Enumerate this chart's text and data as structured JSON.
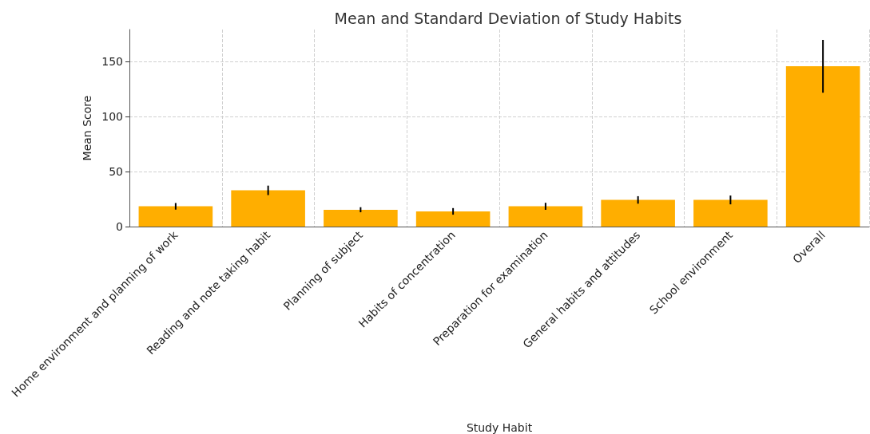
{
  "chart_data": {
    "type": "bar",
    "title": "Mean and Standard Deviation of Study Habits",
    "xlabel": "Study Habit",
    "ylabel": "Mean Score",
    "categories": [
      "Home environment and planning of work",
      "Reading and note taking habit",
      "Planning of subject",
      "Habits of concentration",
      "Preparation for examination",
      "General habits and attitudes",
      "School environment",
      "Overall"
    ],
    "values": [
      18.4,
      32.9,
      15.3,
      13.8,
      18.4,
      24.2,
      24.2,
      145.6
    ],
    "errors": [
      3,
      4.3,
      2.3,
      3,
      3.2,
      3.4,
      4,
      24
    ],
    "color": "#ffae00",
    "ylim": [
      0,
      179
    ],
    "yticks": [
      0,
      50,
      100,
      150
    ],
    "grid": true
  }
}
